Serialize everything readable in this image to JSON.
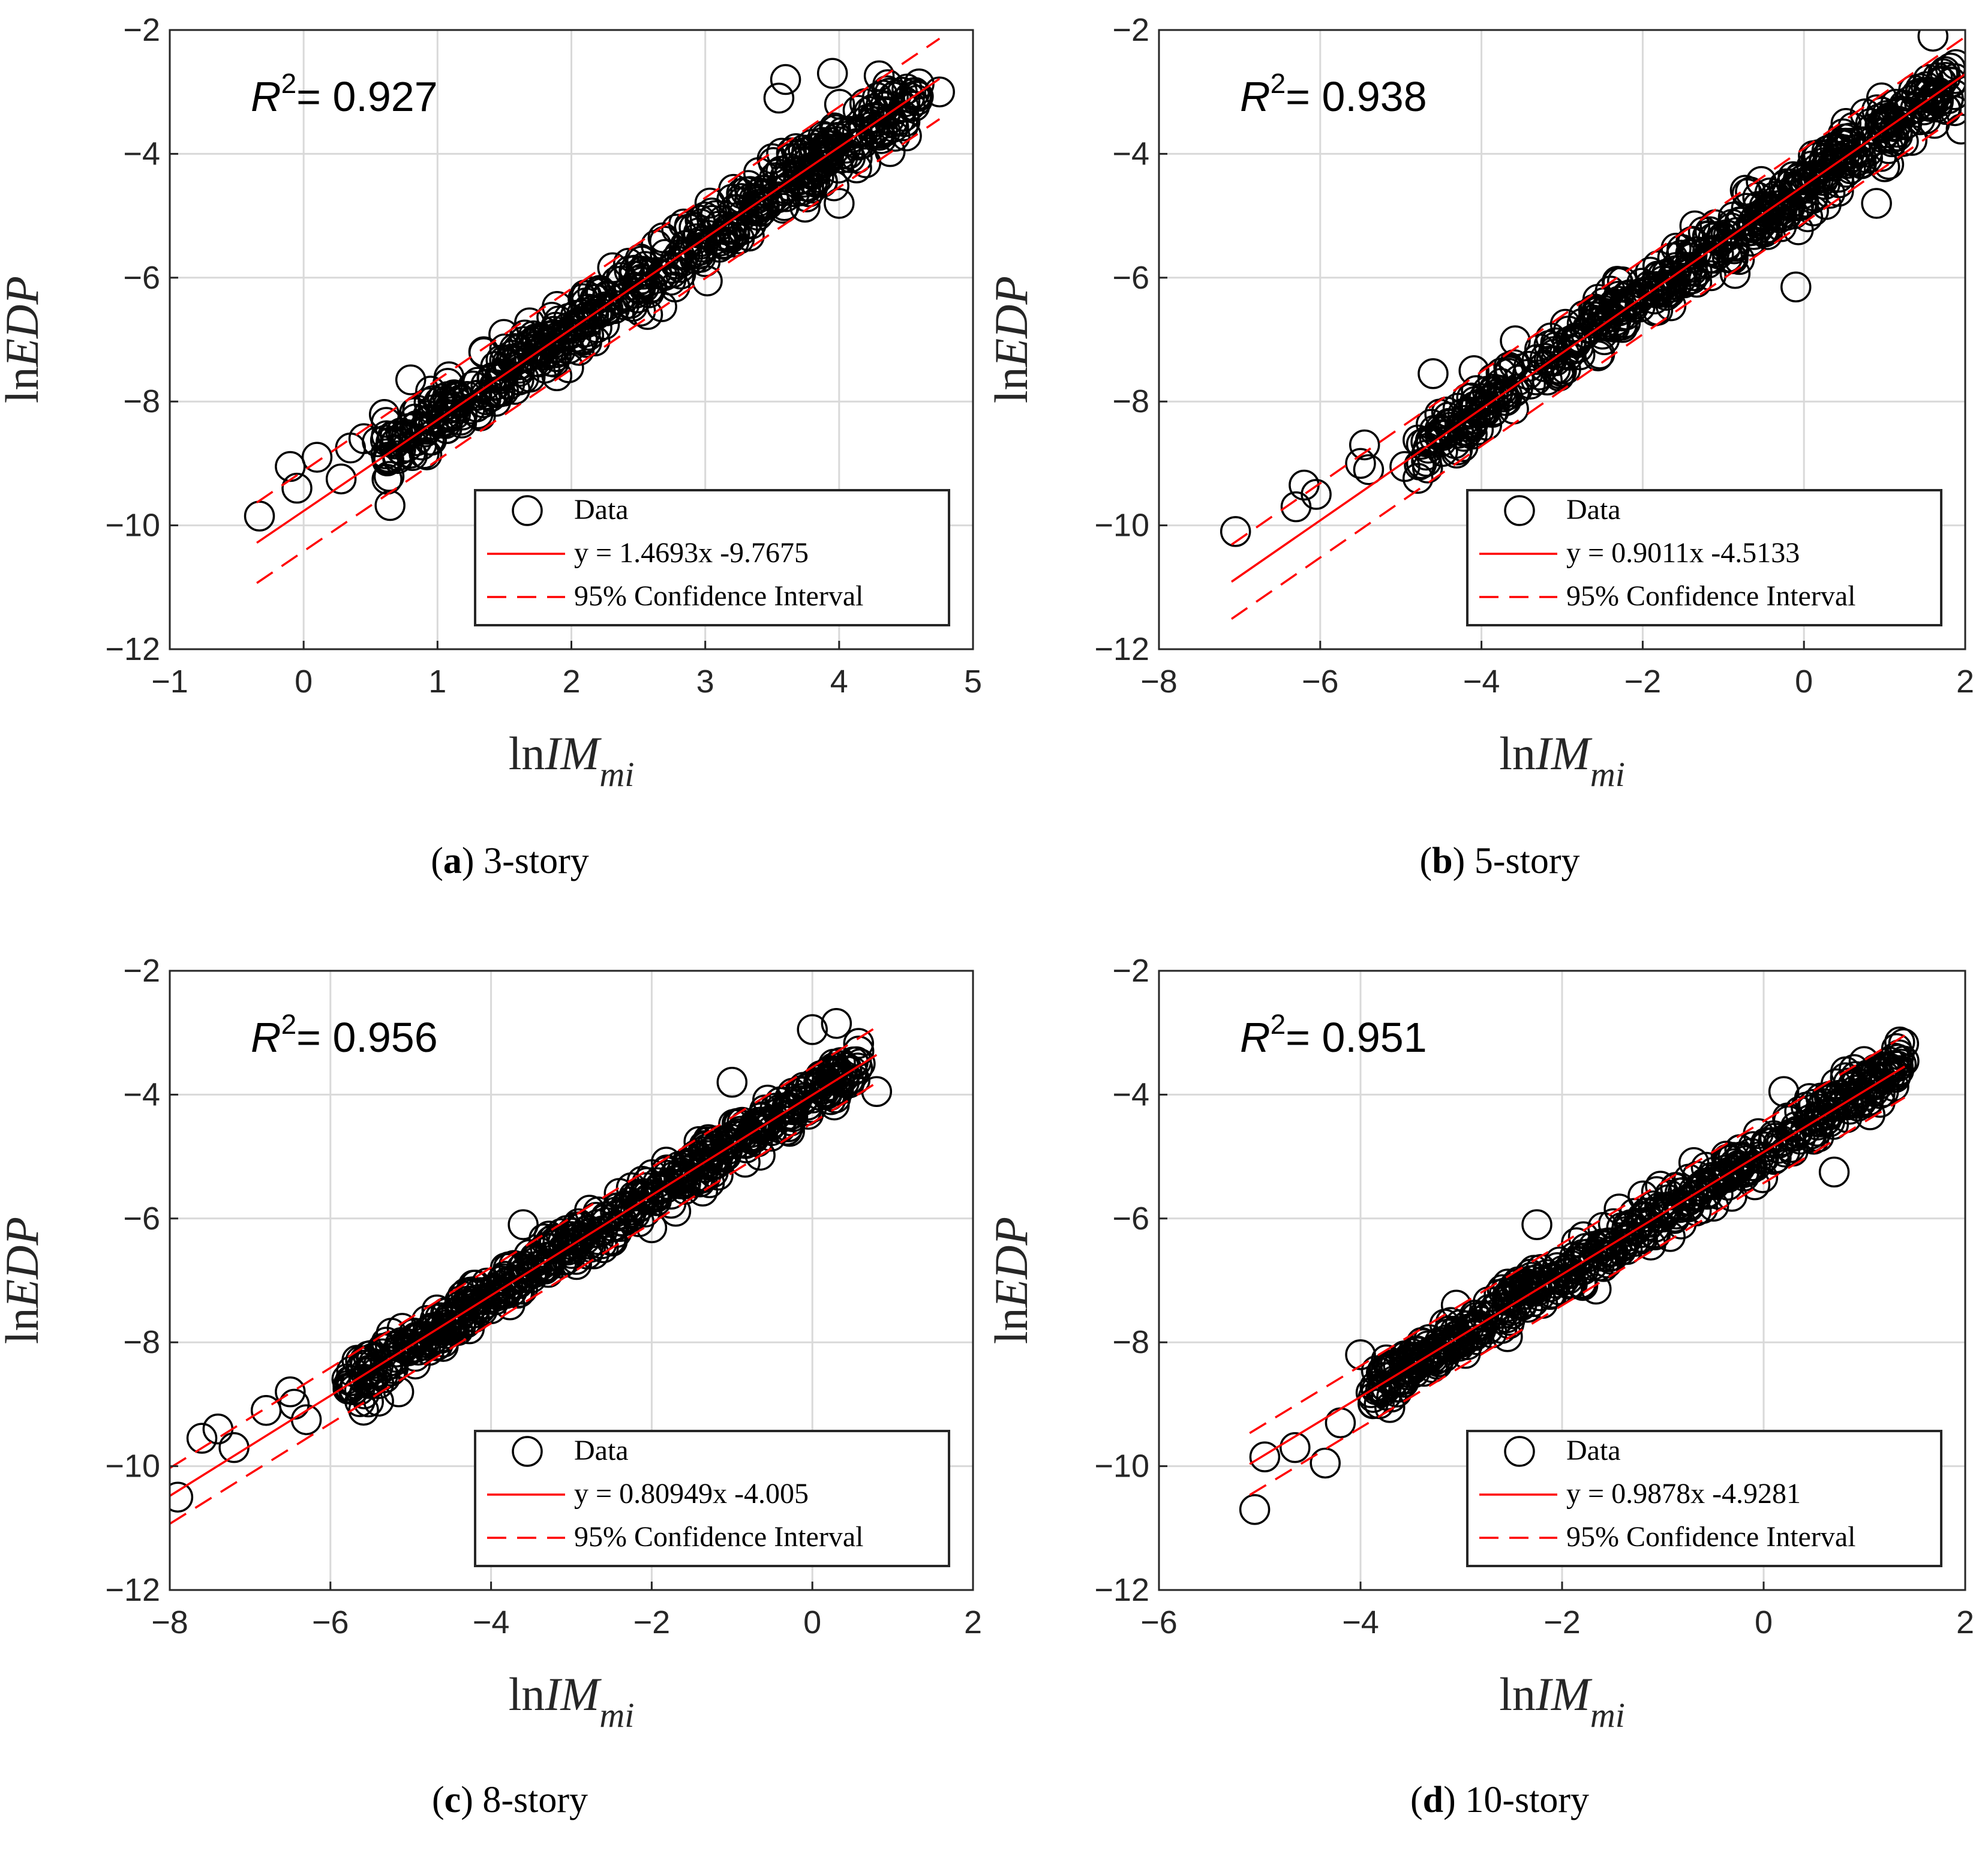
{
  "figure": {
    "colors": {
      "grid": "#d9d9d9",
      "axis": "#262626",
      "marker": "#000000",
      "fit": "#ff0000",
      "ci": "#ff0000"
    },
    "xlabel_prefix": "ln",
    "xlabel_var": "IM",
    "xlabel_sub": "mi",
    "ylabel_prefix": "ln",
    "ylabel_var": "EDP",
    "legend": {
      "data_label": "Data",
      "ci_label": "95% Confidence Interval"
    }
  },
  "chart_data": [
    {
      "type": "scatter",
      "panel": "a",
      "caption_letter": "a",
      "caption_text": " 3-story",
      "r2_prefix": "R",
      "r2_exp": "2",
      "r2_text": "= 0.927",
      "fit_label": "y = 1.4693x -9.7675",
      "slope": 1.4693,
      "intercept": -9.7675,
      "ci_halfwidth": 0.65,
      "xlim": [
        -1,
        5
      ],
      "ylim": [
        -12,
        -2
      ],
      "xticks": [
        "−1",
        "0",
        "1",
        "2",
        "3",
        "4",
        "5"
      ],
      "xtick_values": [
        -1,
        0,
        1,
        2,
        3,
        4,
        5
      ],
      "yticks": [
        "−12",
        "−10",
        "−8",
        "−6",
        "−4",
        "−2"
      ],
      "ytick_values": [
        -12,
        -10,
        -8,
        -6,
        -4,
        -2
      ],
      "fit_x_range": [
        -0.35,
        4.75
      ],
      "cloud_x_range": [
        0.6,
        4.6
      ],
      "outliers": [
        [
          -0.33,
          -9.85
        ],
        [
          -0.1,
          -9.05
        ],
        [
          -0.05,
          -9.4
        ],
        [
          0.1,
          -8.9
        ],
        [
          0.28,
          -9.25
        ],
        [
          0.35,
          -8.75
        ],
        [
          0.45,
          -8.6
        ],
        [
          0.55,
          -8.65
        ],
        [
          0.8,
          -7.65
        ],
        [
          3.55,
          -3.1
        ],
        [
          3.6,
          -2.8
        ],
        [
          3.95,
          -2.7
        ],
        [
          4.0,
          -4.8
        ],
        [
          4.75,
          -3.0
        ]
      ]
    },
    {
      "type": "scatter",
      "panel": "b",
      "caption_letter": "b",
      "caption_text": " 5-story",
      "r2_prefix": "R",
      "r2_exp": "2",
      "r2_text": "= 0.938",
      "fit_label": "y = 0.9011x -4.5133",
      "slope": 0.9011,
      "intercept": -4.5133,
      "ci_halfwidth": 0.6,
      "xlim": [
        -8,
        2
      ],
      "ylim": [
        -12,
        -2
      ],
      "xticks": [
        "−8",
        "−6",
        "−4",
        "−2",
        "0",
        "2"
      ],
      "xtick_values": [
        -8,
        -6,
        -4,
        -2,
        0,
        2
      ],
      "yticks": [
        "−12",
        "−10",
        "−8",
        "−6",
        "−4",
        "−2"
      ],
      "ytick_values": [
        -12,
        -10,
        -8,
        -6,
        -4,
        -2
      ],
      "fit_x_range": [
        -7.1,
        2.0
      ],
      "cloud_x_range": [
        -4.8,
        1.9
      ],
      "outliers": [
        [
          -7.05,
          -10.1
        ],
        [
          -6.3,
          -9.7
        ],
        [
          -6.2,
          -9.35
        ],
        [
          -6.05,
          -9.5
        ],
        [
          -5.5,
          -9.0
        ],
        [
          -5.45,
          -8.7
        ],
        [
          -5.4,
          -9.1
        ],
        [
          -4.95,
          -9.05
        ],
        [
          -4.6,
          -7.55
        ],
        [
          -0.1,
          -6.15
        ],
        [
          0.9,
          -4.8
        ],
        [
          1.6,
          -2.1
        ],
        [
          1.95,
          -3.6
        ]
      ]
    },
    {
      "type": "scatter",
      "panel": "c",
      "caption_letter": "c",
      "caption_text": " 8-story",
      "r2_prefix": "R",
      "r2_exp": "2",
      "r2_text": "= 0.956",
      "fit_label": "y = 0.80949x -4.005",
      "slope": 0.80949,
      "intercept": -4.005,
      "ci_halfwidth": 0.45,
      "xlim": [
        -8,
        2
      ],
      "ylim": [
        -12,
        -2
      ],
      "xticks": [
        "−8",
        "−6",
        "−4",
        "−2",
        "0",
        "2"
      ],
      "xtick_values": [
        -8,
        -6,
        -4,
        -2,
        0,
        2
      ],
      "yticks": [
        "−12",
        "−10",
        "−8",
        "−6",
        "−4",
        "−2"
      ],
      "ytick_values": [
        -12,
        -10,
        -8,
        -6,
        -4,
        -2
      ],
      "fit_x_range": [
        -8.0,
        0.8
      ],
      "cloud_x_range": [
        -5.8,
        0.6
      ],
      "outliers": [
        [
          -7.9,
          -10.5
        ],
        [
          -7.6,
          -9.55
        ],
        [
          -7.4,
          -9.4
        ],
        [
          -7.2,
          -9.7
        ],
        [
          -6.8,
          -9.1
        ],
        [
          -6.5,
          -8.8
        ],
        [
          -6.45,
          -9.0
        ],
        [
          -6.3,
          -9.25
        ],
        [
          -5.4,
          -8.95
        ],
        [
          -5.15,
          -8.8
        ],
        [
          -3.6,
          -6.1
        ],
        [
          -2.0,
          -6.15
        ],
        [
          -1.0,
          -3.8
        ],
        [
          0.0,
          -2.95
        ],
        [
          0.3,
          -2.85
        ],
        [
          0.8,
          -3.95
        ]
      ]
    },
    {
      "type": "scatter",
      "panel": "d",
      "caption_letter": "d",
      "caption_text": " 10-story",
      "r2_prefix": "R",
      "r2_exp": "2",
      "r2_text": "= 0.951",
      "fit_label": "y = 0.9878x -4.9281",
      "slope": 0.9878,
      "intercept": -4.9281,
      "ci_halfwidth": 0.5,
      "xlim": [
        -6,
        2
      ],
      "ylim": [
        -12,
        -2
      ],
      "xticks": [
        "−6",
        "−4",
        "−2",
        "0",
        "2"
      ],
      "xtick_values": [
        -6,
        -4,
        -2,
        0,
        2
      ],
      "yticks": [
        "−12",
        "−10",
        "−8",
        "−6",
        "−4",
        "−2"
      ],
      "ytick_values": [
        -12,
        -10,
        -8,
        -6,
        -4,
        -2
      ],
      "fit_x_range": [
        -5.1,
        1.4
      ],
      "cloud_x_range": [
        -3.9,
        1.4
      ],
      "outliers": [
        [
          -5.05,
          -10.7
        ],
        [
          -4.95,
          -9.85
        ],
        [
          -4.65,
          -9.7
        ],
        [
          -4.35,
          -9.95
        ],
        [
          -4.2,
          -9.3
        ],
        [
          -4.0,
          -8.2
        ],
        [
          -3.05,
          -7.4
        ],
        [
          -2.25,
          -6.1
        ],
        [
          0.2,
          -3.95
        ],
        [
          0.7,
          -5.25
        ],
        [
          1.35,
          -3.15
        ]
      ]
    }
  ]
}
